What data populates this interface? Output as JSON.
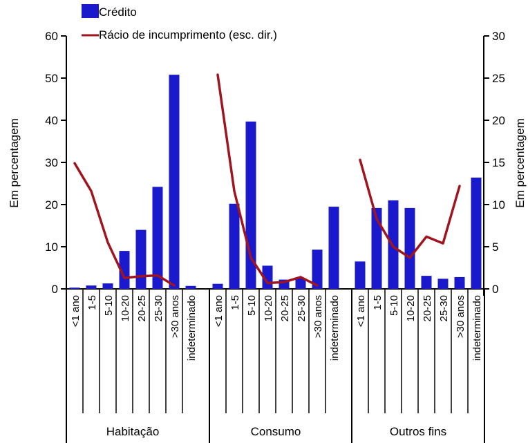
{
  "chart_data": {
    "type": "bar",
    "groups": [
      "Habitação",
      "Consumo",
      "Outros fins"
    ],
    "categories": [
      "<1 ano",
      "1-5",
      "5-10",
      "10-20",
      "20-25",
      "25-30",
      ">30 anos",
      "indeterminado"
    ],
    "series": [
      {
        "name": "Crédito",
        "type": "bar",
        "axis": "left",
        "color": "#1a1acc",
        "values": [
          [
            0.3,
            0.8,
            1.3,
            9.0,
            14.0,
            24.2,
            50.8,
            0.7
          ],
          [
            1.2,
            20.2,
            39.7,
            5.5,
            2.2,
            2.5,
            9.3,
            19.5
          ],
          [
            6.5,
            19.2,
            21.0,
            19.2,
            3.1,
            2.4,
            2.8,
            26.4
          ]
        ]
      },
      {
        "name": "Rácio de incumprimento (esc. dir.)",
        "type": "line",
        "axis": "right",
        "color": "#a0141e",
        "values": [
          [
            14.9,
            11.6,
            5.5,
            1.3,
            1.5,
            1.6,
            0.4,
            null
          ],
          [
            25.4,
            11.6,
            3.7,
            0.7,
            0.8,
            1.4,
            0.4,
            null
          ],
          [
            15.3,
            8.3,
            5.0,
            3.7,
            6.2,
            5.4,
            12.2,
            null
          ]
        ]
      }
    ],
    "ylabel": "Em percentagem",
    "y2label": "Em percentagem",
    "ylim": [
      0,
      60
    ],
    "y2lim": [
      0,
      30
    ],
    "yticks": [
      0,
      10,
      20,
      30,
      40,
      50,
      60
    ],
    "y2ticks": [
      0,
      5,
      10,
      15,
      20,
      25,
      30
    ],
    "legend_position": "top-left",
    "grid": false
  }
}
